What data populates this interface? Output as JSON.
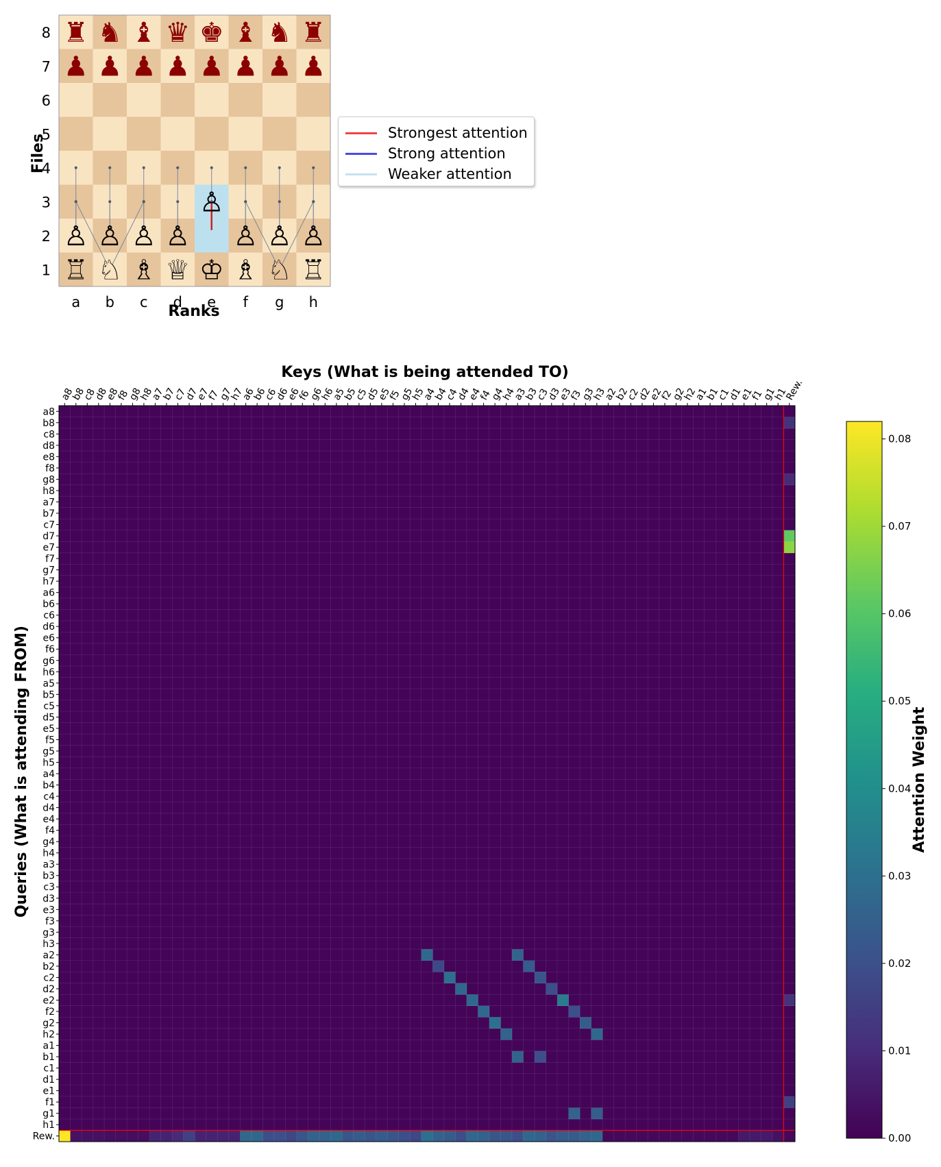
{
  "board": {
    "ylabel": "Files",
    "xlabel": "Ranks",
    "file_labels": [
      "a",
      "b",
      "c",
      "d",
      "e",
      "f",
      "g",
      "h"
    ],
    "rank_labels": [
      "8",
      "7",
      "6",
      "5",
      "4",
      "3",
      "2",
      "1"
    ],
    "pieces": [
      {
        "sq": "a8",
        "glyph": "♜",
        "color": "black"
      },
      {
        "sq": "b8",
        "glyph": "♞",
        "color": "black"
      },
      {
        "sq": "c8",
        "glyph": "♝",
        "color": "black"
      },
      {
        "sq": "d8",
        "glyph": "♛",
        "color": "black"
      },
      {
        "sq": "e8",
        "glyph": "♚",
        "color": "black"
      },
      {
        "sq": "f8",
        "glyph": "♝",
        "color": "black"
      },
      {
        "sq": "g8",
        "glyph": "♞",
        "color": "black"
      },
      {
        "sq": "h8",
        "glyph": "♜",
        "color": "black"
      },
      {
        "sq": "a7",
        "glyph": "♟",
        "color": "black"
      },
      {
        "sq": "b7",
        "glyph": "♟",
        "color": "black"
      },
      {
        "sq": "c7",
        "glyph": "♟",
        "color": "black"
      },
      {
        "sq": "d7",
        "glyph": "♟",
        "color": "black"
      },
      {
        "sq": "e7",
        "glyph": "♟",
        "color": "black"
      },
      {
        "sq": "f7",
        "glyph": "♟",
        "color": "black"
      },
      {
        "sq": "g7",
        "glyph": "♟",
        "color": "black"
      },
      {
        "sq": "h7",
        "glyph": "♟",
        "color": "black"
      },
      {
        "sq": "a2",
        "glyph": "♙",
        "color": "white"
      },
      {
        "sq": "b2",
        "glyph": "♙",
        "color": "white"
      },
      {
        "sq": "c2",
        "glyph": "♙",
        "color": "white"
      },
      {
        "sq": "d2",
        "glyph": "♙",
        "color": "white"
      },
      {
        "sq": "e3",
        "glyph": "♙",
        "color": "white"
      },
      {
        "sq": "f2",
        "glyph": "♙",
        "color": "white"
      },
      {
        "sq": "g2",
        "glyph": "♙",
        "color": "white"
      },
      {
        "sq": "h2",
        "glyph": "♙",
        "color": "white"
      },
      {
        "sq": "a1",
        "glyph": "♖",
        "color": "white"
      },
      {
        "sq": "b1",
        "glyph": "♘",
        "color": "white"
      },
      {
        "sq": "c1",
        "glyph": "♗",
        "color": "white"
      },
      {
        "sq": "d1",
        "glyph": "♕",
        "color": "white"
      },
      {
        "sq": "e1",
        "glyph": "♔",
        "color": "white"
      },
      {
        "sq": "f1",
        "glyph": "♗",
        "color": "white"
      },
      {
        "sq": "g1",
        "glyph": "♘",
        "color": "white"
      },
      {
        "sq": "h1",
        "glyph": "♖",
        "color": "white"
      }
    ],
    "highlight_square": "e2",
    "highlight_color": "#bde0ee",
    "light_square_color": "#f9e4c2",
    "dark_square_color": "#e6c49c",
    "black_piece_color": "#8b0000",
    "arrows": [
      {
        "from": "a2",
        "to": "a4",
        "strength": "weak"
      },
      {
        "from": "b2",
        "to": "b4",
        "strength": "weak"
      },
      {
        "from": "c2",
        "to": "c4",
        "strength": "weak"
      },
      {
        "from": "d2",
        "to": "d4",
        "strength": "weak"
      },
      {
        "from": "e2",
        "to": "e4",
        "strength": "weak"
      },
      {
        "from": "f2",
        "to": "f4",
        "strength": "weak"
      },
      {
        "from": "g2",
        "to": "g4",
        "strength": "weak"
      },
      {
        "from": "h2",
        "to": "h4",
        "strength": "weak"
      },
      {
        "from": "a2",
        "to": "a3",
        "strength": "weak"
      },
      {
        "from": "b2",
        "to": "b3",
        "strength": "weak"
      },
      {
        "from": "c2",
        "to": "c3",
        "strength": "weak"
      },
      {
        "from": "d2",
        "to": "d3",
        "strength": "weak"
      },
      {
        "from": "f2",
        "to": "f3",
        "strength": "weak"
      },
      {
        "from": "g2",
        "to": "g3",
        "strength": "weak"
      },
      {
        "from": "h2",
        "to": "h3",
        "strength": "weak"
      },
      {
        "from": "b1",
        "to": "a3",
        "strength": "weak"
      },
      {
        "from": "b1",
        "to": "c3",
        "strength": "weak"
      },
      {
        "from": "g1",
        "to": "f3",
        "strength": "weak"
      },
      {
        "from": "g1",
        "to": "h3",
        "strength": "weak"
      },
      {
        "from": "e2",
        "to": "e3",
        "strength": "strongest"
      }
    ],
    "legend": [
      {
        "label": "Strongest attention",
        "color": "#f04545"
      },
      {
        "label": "Strong attention",
        "color": "#4a4ae0"
      },
      {
        "label": "Weaker attention",
        "color": "#c5e2ee"
      }
    ]
  },
  "chart_data": {
    "type": "heatmap",
    "title": "Keys (What is being attended TO)",
    "xlabel": "Keys (What is being attended TO)",
    "ylabel": "Queries (What is attending FROM)",
    "labels": [
      "a8",
      "b8",
      "c8",
      "d8",
      "e8",
      "f8",
      "g8",
      "h8",
      "a7",
      "b7",
      "c7",
      "d7",
      "e7",
      "f7",
      "g7",
      "h7",
      "a6",
      "b6",
      "c6",
      "d6",
      "e6",
      "f6",
      "g6",
      "h6",
      "a5",
      "b5",
      "c5",
      "d5",
      "e5",
      "f5",
      "g5",
      "h5",
      "a4",
      "b4",
      "c4",
      "d4",
      "e4",
      "f4",
      "g4",
      "h4",
      "a3",
      "b3",
      "c3",
      "d3",
      "e3",
      "f3",
      "g3",
      "h3",
      "a2",
      "b2",
      "c2",
      "d2",
      "e2",
      "f2",
      "g2",
      "h2",
      "a1",
      "b1",
      "c1",
      "d1",
      "e1",
      "f1",
      "g1",
      "h1",
      "Rew."
    ],
    "base_value": 0.001,
    "cells": [
      {
        "row": "b8",
        "col": "Rew.",
        "value": 0.012
      },
      {
        "row": "g8",
        "col": "Rew.",
        "value": 0.01
      },
      {
        "row": "d7",
        "col": "Rew.",
        "value": 0.062
      },
      {
        "row": "e7",
        "col": "Rew.",
        "value": 0.068
      },
      {
        "row": "a2",
        "col": "a4",
        "value": 0.028
      },
      {
        "row": "a2",
        "col": "a3",
        "value": 0.026
      },
      {
        "row": "b2",
        "col": "b4",
        "value": 0.018
      },
      {
        "row": "b2",
        "col": "b3",
        "value": 0.024
      },
      {
        "row": "c2",
        "col": "c4",
        "value": 0.03
      },
      {
        "row": "c2",
        "col": "c3",
        "value": 0.022
      },
      {
        "row": "d2",
        "col": "d4",
        "value": 0.028
      },
      {
        "row": "d2",
        "col": "d3",
        "value": 0.02
      },
      {
        "row": "e2",
        "col": "e4",
        "value": 0.028
      },
      {
        "row": "e2",
        "col": "e3",
        "value": 0.034
      },
      {
        "row": "e2",
        "col": "Rew.",
        "value": 0.012
      },
      {
        "row": "f2",
        "col": "f4",
        "value": 0.028
      },
      {
        "row": "f2",
        "col": "f3",
        "value": 0.02
      },
      {
        "row": "g2",
        "col": "g4",
        "value": 0.03
      },
      {
        "row": "g2",
        "col": "g3",
        "value": 0.024
      },
      {
        "row": "h2",
        "col": "h4",
        "value": 0.026
      },
      {
        "row": "h2",
        "col": "h3",
        "value": 0.028
      },
      {
        "row": "b1",
        "col": "a3",
        "value": 0.026
      },
      {
        "row": "b1",
        "col": "c3",
        "value": 0.02
      },
      {
        "row": "f1",
        "col": "Rew.",
        "value": 0.016
      },
      {
        "row": "g1",
        "col": "f3",
        "value": 0.026
      },
      {
        "row": "g1",
        "col": "h3",
        "value": 0.024
      },
      {
        "row": "Rew.",
        "col": "a8",
        "value": 0.082
      }
    ],
    "rew_row_values": [
      0.082,
      0.004,
      0.004,
      0.004,
      0.003,
      0.003,
      0.003,
      0.003,
      0.008,
      0.008,
      0.01,
      0.016,
      0.008,
      0.008,
      0.008,
      0.008,
      0.028,
      0.028,
      0.02,
      0.02,
      0.018,
      0.022,
      0.026,
      0.026,
      0.028,
      0.022,
      0.024,
      0.022,
      0.024,
      0.022,
      0.02,
      0.018,
      0.03,
      0.026,
      0.024,
      0.02,
      0.028,
      0.026,
      0.022,
      0.022,
      0.02,
      0.028,
      0.026,
      0.022,
      0.024,
      0.024,
      0.026,
      0.028,
      0.002,
      0.002,
      0.002,
      0.002,
      0.002,
      0.002,
      0.002,
      0.002,
      0.002,
      0.002,
      0.002,
      0.002,
      0.006,
      0.006,
      0.006,
      0.004,
      0.002
    ],
    "colorbar": {
      "label": "Attention Weight",
      "vmin": 0.0,
      "vmax": 0.082,
      "ticks": [
        "0.00",
        "0.01",
        "0.02",
        "0.03",
        "0.04",
        "0.05",
        "0.06",
        "0.07",
        "0.08"
      ],
      "tick_values": [
        0,
        0.01,
        0.02,
        0.03,
        0.04,
        0.05,
        0.06,
        0.07,
        0.08
      ],
      "colormap": "viridis"
    },
    "separator_color": "#ff0000"
  }
}
